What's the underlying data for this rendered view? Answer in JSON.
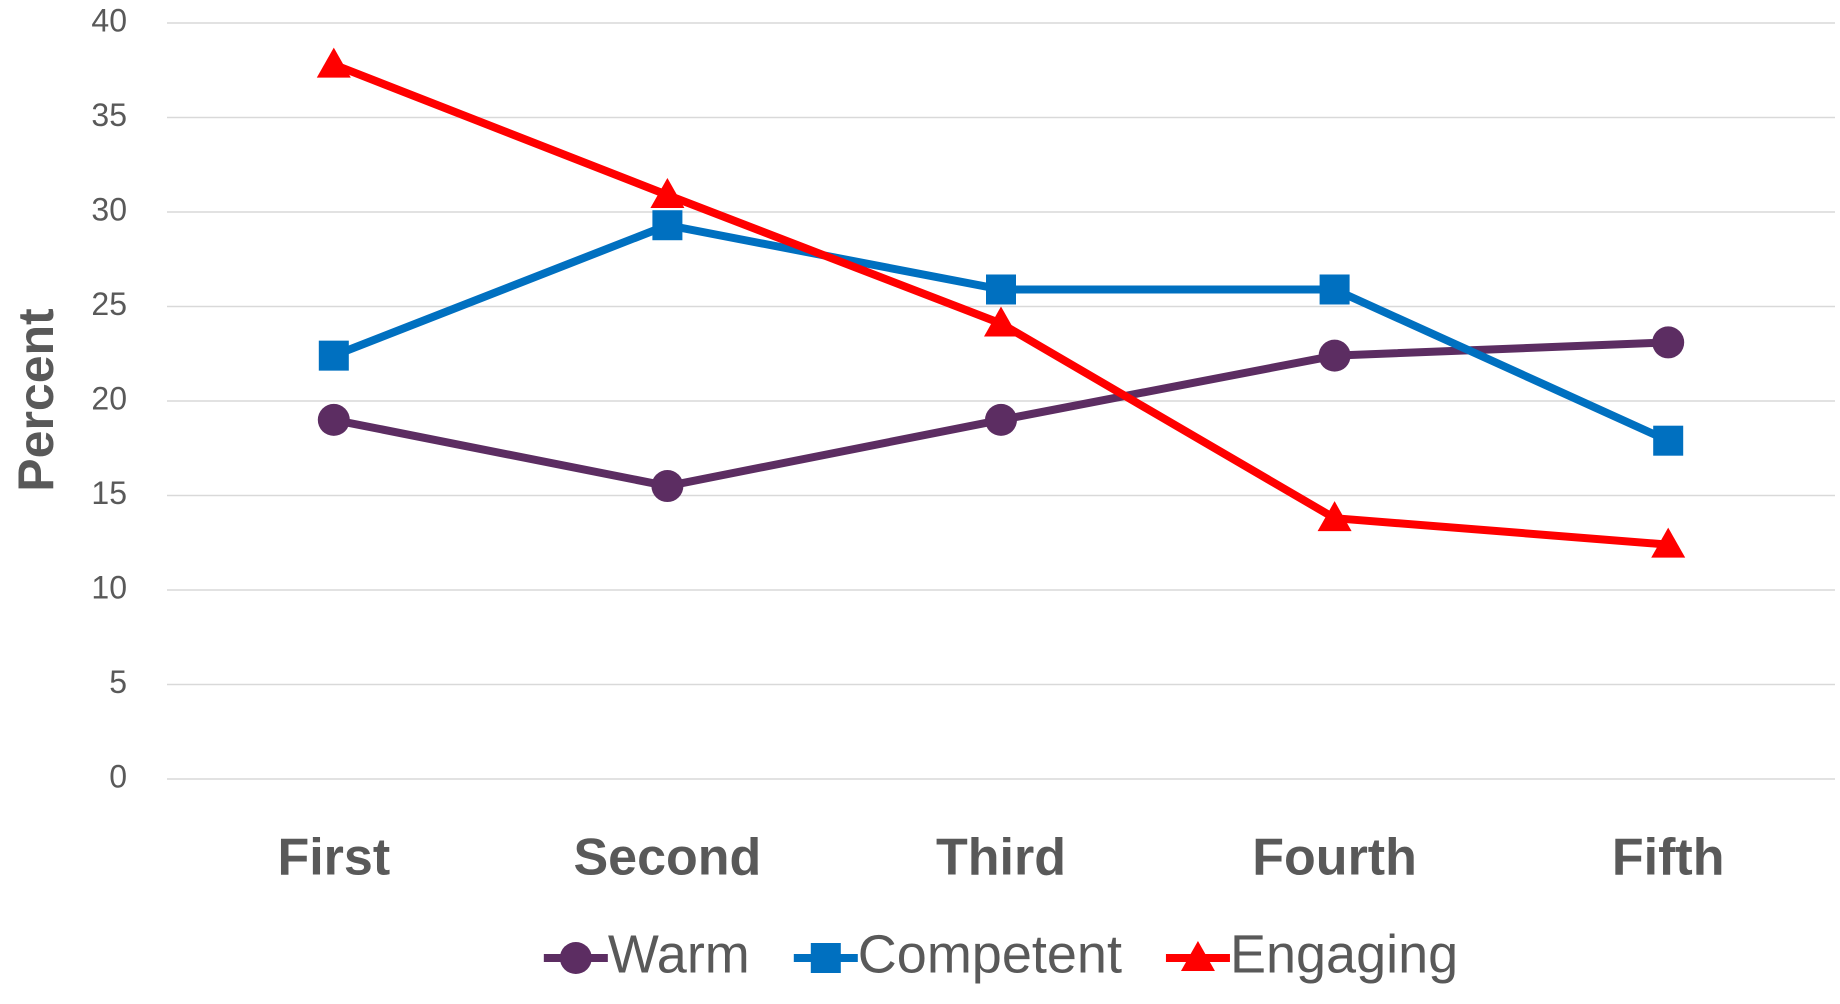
{
  "chart_data": {
    "type": "line",
    "y_label": "Percent",
    "categories": [
      "First",
      "Second",
      "Third",
      "Fourth",
      "Fifth"
    ],
    "series": [
      {
        "name": "Warm",
        "color": "#5c2d62",
        "marker": "circle",
        "values": [
          19,
          15.5,
          19,
          22.4,
          23.1
        ]
      },
      {
        "name": "Competent",
        "color": "#0070c0",
        "marker": "square",
        "values": [
          22.4,
          29.3,
          25.9,
          25.9,
          17.9
        ]
      },
      {
        "name": "Engaging",
        "color": "#ff0000",
        "marker": "triangle",
        "values": [
          37.8,
          30.9,
          24.1,
          13.8,
          12.4
        ]
      }
    ],
    "ylim": [
      0,
      40
    ],
    "yticks": [
      0,
      5,
      10,
      15,
      20,
      25,
      30,
      35,
      40
    ],
    "grid": true,
    "legend": "bottom"
  }
}
